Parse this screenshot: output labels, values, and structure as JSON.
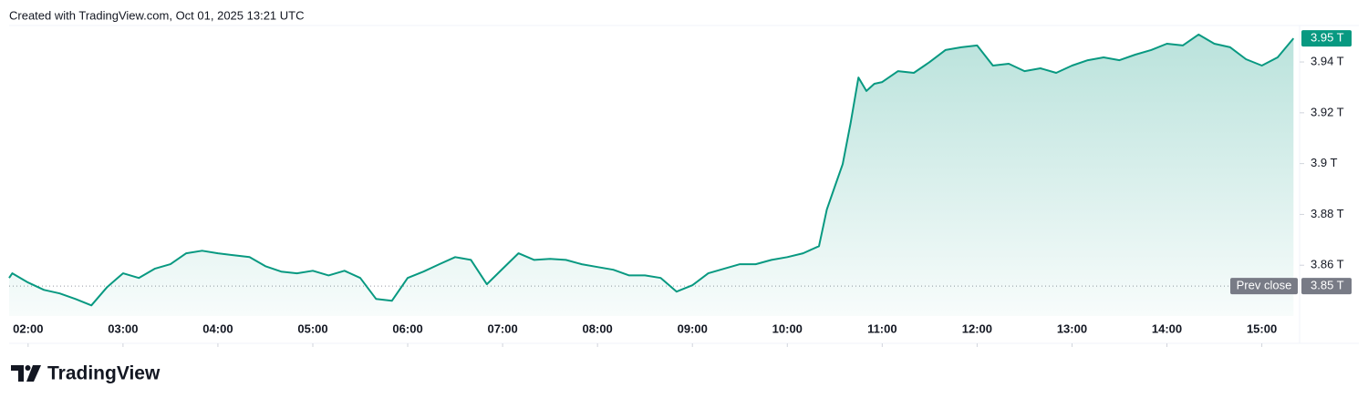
{
  "header": "Created with TradingView.com, Oct 01, 2025 13:21 UTC",
  "footer": "TradingView",
  "chart_data": {
    "type": "area",
    "color": "#089981",
    "x": [
      "01:48",
      "01:50",
      "02:00",
      "02:10",
      "02:20",
      "02:30",
      "02:40",
      "02:50",
      "03:00",
      "03:10",
      "03:20",
      "03:30",
      "03:40",
      "03:50",
      "04:00",
      "04:10",
      "04:20",
      "04:30",
      "04:40",
      "04:50",
      "05:00",
      "05:10",
      "05:20",
      "05:30",
      "05:40",
      "05:50",
      "06:00",
      "06:10",
      "06:20",
      "06:30",
      "06:40",
      "06:50",
      "07:00",
      "07:10",
      "07:20",
      "07:30",
      "07:40",
      "07:50",
      "08:00",
      "08:10",
      "08:20",
      "08:30",
      "08:40",
      "08:50",
      "09:00",
      "09:10",
      "09:20",
      "09:30",
      "09:40",
      "09:50",
      "10:00",
      "10:10",
      "10:20",
      "10:25",
      "10:30",
      "10:35",
      "10:40",
      "10:45",
      "10:50",
      "10:55",
      "11:00",
      "11:10",
      "11:20",
      "11:30",
      "11:40",
      "11:50",
      "12:00",
      "12:10",
      "12:20",
      "12:30",
      "12:40",
      "12:50",
      "13:00",
      "13:10",
      "13:20",
      "13:30",
      "13:40",
      "13:50",
      "14:00",
      "14:10",
      "14:20",
      "14:30",
      "14:40",
      "14:50",
      "15:00",
      "15:10",
      "15:20"
    ],
    "values": [
      3.855,
      3.8568,
      3.8532,
      3.8503,
      3.8489,
      3.8467,
      3.8442,
      3.8514,
      3.8568,
      3.855,
      3.8586,
      3.8604,
      3.8647,
      3.8657,
      3.8647,
      3.8639,
      3.8632,
      3.8596,
      3.8575,
      3.8568,
      3.8578,
      3.856,
      3.8578,
      3.855,
      3.8467,
      3.846,
      3.855,
      3.8575,
      3.8604,
      3.8632,
      3.8621,
      3.8525,
      3.8586,
      3.8647,
      3.8621,
      3.8625,
      3.8621,
      3.8604,
      3.8593,
      3.8582,
      3.856,
      3.856,
      3.855,
      3.8496,
      3.8521,
      3.8568,
      3.8586,
      3.8604,
      3.8604,
      3.8621,
      3.8632,
      3.8647,
      3.8675,
      3.8819,
      3.8909,
      3.8998,
      3.916,
      3.9339,
      3.9286,
      3.9314,
      3.9321,
      3.9364,
      3.9357,
      3.94,
      3.9447,
      3.9458,
      3.9465,
      3.9386,
      3.9393,
      3.9364,
      3.9375,
      3.9357,
      3.9386,
      3.9407,
      3.9418,
      3.9407,
      3.9429,
      3.9447,
      3.9472,
      3.9465,
      3.9508,
      3.9472,
      3.9458,
      3.9411,
      3.9386,
      3.9418,
      3.9493
    ],
    "xlim": [
      "01:48",
      "15:21"
    ],
    "xticks": [
      "02:00",
      "03:00",
      "04:00",
      "05:00",
      "06:00",
      "07:00",
      "08:00",
      "09:00",
      "10:00",
      "11:00",
      "12:00",
      "13:00",
      "14:00",
      "15:00"
    ],
    "ylim": [
      3.84,
      3.954
    ],
    "yticks": [
      {
        "value": 3.86,
        "label": "3.86 T"
      },
      {
        "value": 3.88,
        "label": "3.88 T"
      },
      {
        "value": 3.9,
        "label": "3.9 T"
      },
      {
        "value": 3.92,
        "label": "3.92 T"
      },
      {
        "value": 3.94,
        "label": "3.94 T"
      }
    ],
    "last_price": {
      "value": 3.9493,
      "label": "3.95 T"
    },
    "prev_close": {
      "value": 3.8518,
      "label": "3.85 T",
      "text": "Prev close"
    }
  }
}
